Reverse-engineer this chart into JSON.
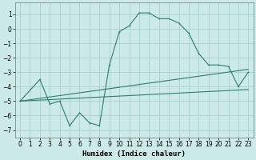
{
  "xlabel": "Humidex (Indice chaleur)",
  "bg_color": "#cceae8",
  "grid_color": "#aacfcc",
  "line_color": "#2d7d6e",
  "xlim": [
    -0.5,
    23.5
  ],
  "ylim": [
    -7.5,
    1.8
  ],
  "xticks": [
    0,
    1,
    2,
    3,
    4,
    5,
    6,
    7,
    8,
    9,
    10,
    11,
    12,
    13,
    14,
    15,
    16,
    17,
    18,
    19,
    20,
    21,
    22,
    23
  ],
  "yticks": [
    -7,
    -6,
    -5,
    -4,
    -3,
    -2,
    -1,
    0,
    1
  ],
  "line1_x": [
    0,
    2,
    3,
    4,
    5,
    6,
    7,
    8,
    9,
    10,
    11,
    12,
    13,
    14,
    15,
    16,
    17,
    18,
    19,
    20,
    21,
    22,
    23
  ],
  "line1_y": [
    -5.0,
    -3.5,
    -5.2,
    -5.0,
    -6.7,
    -5.8,
    -6.5,
    -6.7,
    -2.5,
    -0.2,
    0.2,
    1.1,
    1.1,
    0.7,
    0.7,
    0.4,
    -0.3,
    -1.7,
    -2.5,
    -2.5,
    -2.6,
    -4.0,
    -3.0
  ],
  "line2_x": [
    0,
    23
  ],
  "line2_y": [
    -5.0,
    -2.8
  ],
  "line3_x": [
    0,
    23
  ],
  "line3_y": [
    -5.0,
    -4.2
  ],
  "xlabel_fontsize": 6.5,
  "tick_fontsize": 5.5
}
